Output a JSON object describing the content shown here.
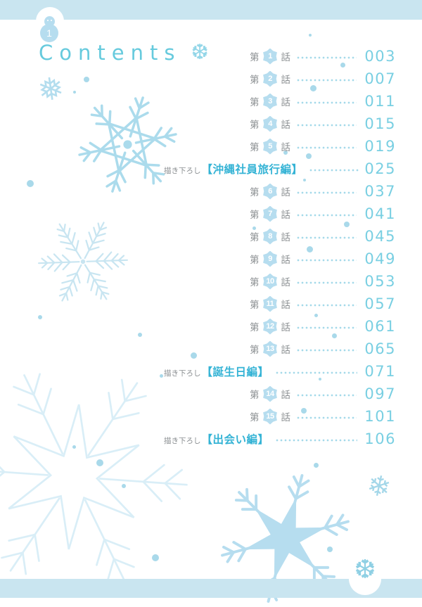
{
  "header": {
    "title": "Contents",
    "snowman_number": "1"
  },
  "icons": {
    "title_snowflake": "❆",
    "corner_lace_snowflake": "❆",
    "small_filled_snowflake": "❅",
    "small_line_snowflake": "❄"
  },
  "toc": {
    "chapter_prefix": "第",
    "chapter_suffix": "話",
    "special_prefix": "描き下ろし",
    "entries": [
      {
        "type": "chapter",
        "num": "1",
        "page": "003"
      },
      {
        "type": "chapter",
        "num": "2",
        "page": "007"
      },
      {
        "type": "chapter",
        "num": "3",
        "page": "011"
      },
      {
        "type": "chapter",
        "num": "4",
        "page": "015"
      },
      {
        "type": "chapter",
        "num": "5",
        "page": "019"
      },
      {
        "type": "special",
        "label": "【沖縄社員旅行編】",
        "page": "025"
      },
      {
        "type": "chapter",
        "num": "6",
        "page": "037"
      },
      {
        "type": "chapter",
        "num": "7",
        "page": "041"
      },
      {
        "type": "chapter",
        "num": "8",
        "page": "045"
      },
      {
        "type": "chapter",
        "num": "9",
        "page": "049"
      },
      {
        "type": "chapter",
        "num": "10",
        "page": "053"
      },
      {
        "type": "chapter",
        "num": "11",
        "page": "057"
      },
      {
        "type": "chapter",
        "num": "12",
        "page": "061"
      },
      {
        "type": "chapter",
        "num": "13",
        "page": "065"
      },
      {
        "type": "special",
        "label": "【誕生日編】",
        "page": "071"
      },
      {
        "type": "chapter",
        "num": "14",
        "page": "097"
      },
      {
        "type": "chapter",
        "num": "15",
        "page": "101"
      },
      {
        "type": "special",
        "label": "【出会い編】",
        "page": "106"
      }
    ]
  },
  "colors": {
    "bar_blue": "#c9e5f0",
    "snow_blue": "#b6ddef",
    "accent_cyan": "#34b3d5",
    "page_number_cyan": "#79cfe2",
    "text_gray": "#8b8f92"
  }
}
